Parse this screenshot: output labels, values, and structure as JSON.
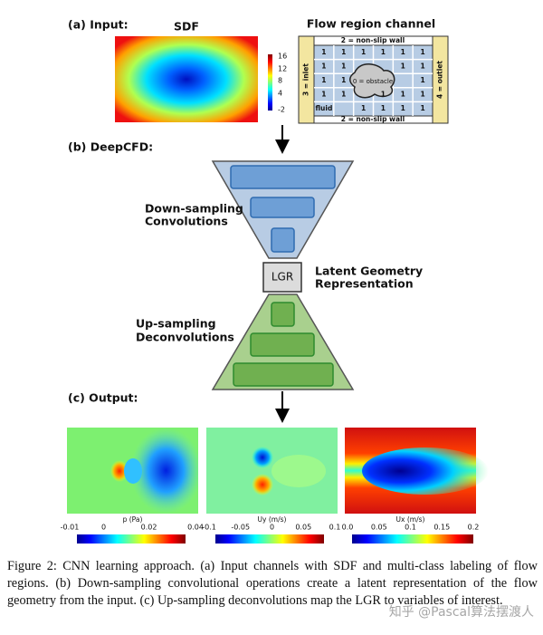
{
  "input": {
    "label": "(a) Input:",
    "sdf_title": "SDF",
    "sdf_colorbar_ticks": [
      "16",
      "12",
      "8",
      "4",
      "-2"
    ],
    "channel_title": "Flow region channel",
    "top_wall": "2 = non-slip wall",
    "bottom_wall": "2 = non-slip wall",
    "inlet": "3 = inlet",
    "outlet": "4 = outlet",
    "obstacle": "0 = obstacle",
    "grid": [
      [
        "1",
        "1",
        "1",
        "1",
        "1",
        "1"
      ],
      [
        "1",
        "1",
        null,
        null,
        "1",
        "1"
      ],
      [
        "1",
        "1",
        null,
        null,
        null,
        "1"
      ],
      [
        "1",
        "1",
        null,
        "1",
        "1",
        "1"
      ],
      [
        "fluid",
        null,
        "1",
        "1",
        "1",
        "1"
      ]
    ]
  },
  "model": {
    "label": "(b) DeepCFD:",
    "down_label": [
      "Down-sampling",
      "Convolutions"
    ],
    "lgr": "LGR",
    "lgr_label": [
      "Latent Geometry",
      "Representation"
    ],
    "up_label": [
      "Up-sampling",
      "Deconvolutions"
    ]
  },
  "output": {
    "label": "(c) Output:",
    "panels": [
      {
        "name": "p (Pa)",
        "ticks": [
          "-0.01",
          "0",
          "0.02",
          "0.04"
        ]
      },
      {
        "name": "Uy (m/s)",
        "ticks": [
          "-0.1",
          "-0.05",
          "0",
          "0.05",
          "0.1"
        ]
      },
      {
        "name": "Ux (m/s)",
        "ticks": [
          "0.0",
          "0.05",
          "0.1",
          "0.15",
          "0.2"
        ]
      }
    ]
  },
  "caption": "Figure 2: CNN learning approach. (a) Input channels with SDF and multi-class labeling of flow regions. (b) Down-sampling convolutional operations create a latent representation of the flow geometry from the input. (c) Up-sampling deconvolutions map the LGR to variables of interest.",
  "watermark": "知乎 @Pascal算法摆渡人"
}
